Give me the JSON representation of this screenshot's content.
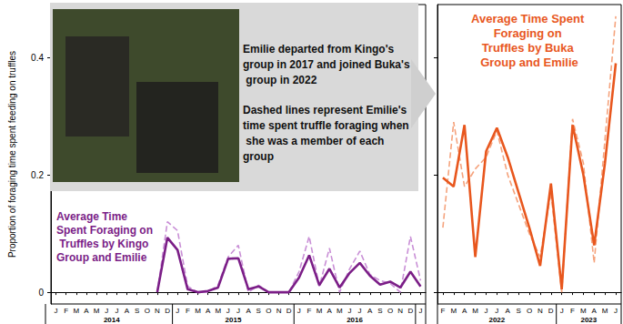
{
  "chart_data": [
    {
      "type": "line",
      "title": "Average Time Spent Foraging on Truffles by Kingo Group and Emilie",
      "ylabel": "Proportion of foraging time spent feeding on truffles",
      "annotations": [
        "Emilie departed from Kingo's group in 2017 and joined Buka's group in 2022",
        "Dashed lines represent Emilie's time spent truffle foraging when she was a member of each group"
      ],
      "categories": [
        "J",
        "F",
        "M",
        "A",
        "M",
        "J",
        "J",
        "A",
        "S",
        "O",
        "N",
        "D",
        "J",
        "F",
        "M",
        "A",
        "M",
        "J",
        "J",
        "A",
        "S",
        "O",
        "N",
        "D",
        "J",
        "F",
        "M",
        "A",
        "M",
        "J",
        "J",
        "A",
        "S",
        "O",
        "N",
        "D",
        "J"
      ],
      "year_labels": [
        "2014",
        "2015",
        "2016"
      ],
      "ylim": [
        -0.02,
        0.49
      ],
      "yticks": [
        0,
        0.2,
        0.4
      ],
      "grid": false,
      "series": [
        {
          "color": "#c98fd6",
          "line_style": "dashed",
          "values": [
            null,
            null,
            null,
            null,
            null,
            null,
            null,
            null,
            null,
            null,
            0.0,
            0.12,
            0.105,
            0.01,
            0.0,
            0.0,
            0.012,
            0.06,
            0.08,
            0.0,
            0.012,
            0.0,
            0.0,
            0.0,
            0.035,
            0.095,
            0.01,
            0.075,
            0.0,
            0.04,
            0.07,
            0.03,
            0.02,
            0.015,
            0.0,
            0.095,
            0.02
          ]
        },
        {
          "color": "#7b1e87",
          "line_style": "solid",
          "values": [
            null,
            null,
            null,
            null,
            null,
            null,
            null,
            null,
            null,
            null,
            0.0,
            0.093,
            0.072,
            0.005,
            0.0,
            0.002,
            0.008,
            0.057,
            0.058,
            0.005,
            0.01,
            0.0,
            0.0,
            0.0,
            0.025,
            0.063,
            0.012,
            0.04,
            0.008,
            0.033,
            0.05,
            0.028,
            0.013,
            0.018,
            0.008,
            0.035,
            0.01
          ]
        }
      ]
    },
    {
      "type": "line",
      "title": "Average Time Spent Foraging on Truffles by Buka Group and Emilie",
      "categories": [
        "F",
        "M",
        "A",
        "M",
        "J",
        "J",
        "A",
        "S",
        "O",
        "N",
        "D",
        "J",
        "F",
        "M",
        "A",
        "M",
        "J"
      ],
      "year_labels": [
        "2022",
        "2023"
      ],
      "ylim": [
        -0.02,
        0.49
      ],
      "yticks": [
        0,
        0.2,
        0.4
      ],
      "grid": false,
      "tick_labels": "x",
      "series": [
        {
          "color": "#f5a37d",
          "line_style": "dashed",
          "values": [
            0.11,
            0.29,
            0.18,
            0.21,
            0.23,
            0.275,
            0.2,
            0.15,
            0.1,
            0.06,
            0.17,
            0.0,
            0.295,
            0.22,
            0.05,
            0.26,
            0.47
          ]
        },
        {
          "color": "#e8571e",
          "line_style": "solid",
          "values": [
            0.195,
            0.18,
            0.285,
            0.06,
            0.24,
            0.28,
            0.23,
            0.17,
            0.11,
            0.045,
            0.185,
            0.005,
            0.285,
            0.2,
            0.08,
            0.22,
            0.39
          ]
        }
      ]
    }
  ]
}
